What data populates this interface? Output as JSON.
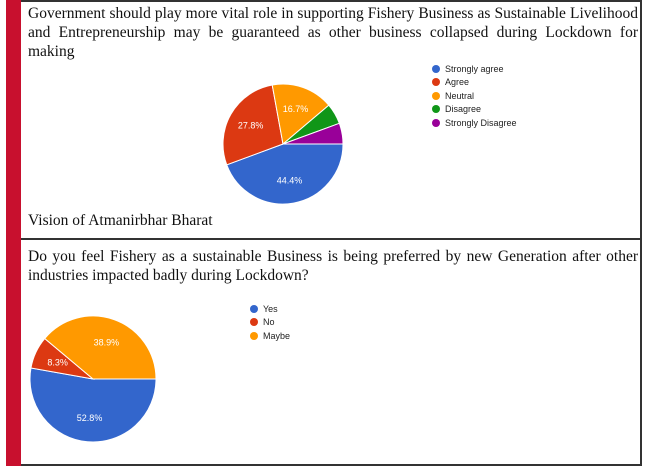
{
  "chart_data": [
    {
      "type": "pie",
      "title": "Government should play more vital role in supporting Fishery Business as Sustainable Livelihood and Entrepreneurship may be guaranteed as other business collapsed during Lockdown for making",
      "title_continued": "Vision of Atmanirbhar Bharat",
      "legend_position": "right",
      "categories": [
        "Strongly agree",
        "Agree",
        "Neutral",
        "Disagree",
        "Strongly Disagree"
      ],
      "values": [
        44.4,
        27.8,
        16.7,
        5.6,
        5.6
      ],
      "labels": [
        "44.4%",
        "27.8%",
        "16.7%",
        "",
        ""
      ],
      "colors": [
        "#3366cc",
        "#dc3912",
        "#ff9900",
        "#109618",
        "#990099"
      ]
    },
    {
      "type": "pie",
      "title": "Do you feel Fishery as a sustainable Business is being preferred by new Generation after other industries impacted badly during Lockdown?",
      "legend_position": "right",
      "categories": [
        "Yes",
        "No",
        "Maybe"
      ],
      "values": [
        52.8,
        8.3,
        38.9
      ],
      "labels": [
        "52.8%",
        "8.3%",
        "38.9%"
      ],
      "colors": [
        "#3366cc",
        "#dc3912",
        "#ff9900"
      ]
    }
  ]
}
